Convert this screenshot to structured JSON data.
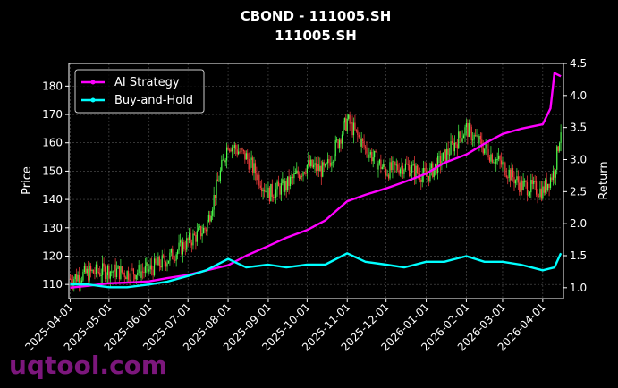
{
  "chart_data": {
    "type": "line",
    "title": "CBOND - 111005.SH",
    "subtitle": "111005.SH",
    "xlabel": "",
    "ylabel_left": "Price",
    "ylabel_right": "Return",
    "x_tick_labels": [
      "2025-04-01",
      "2025-05-01",
      "2025-06-01",
      "2025-07-01",
      "2025-08-01",
      "2025-09-01",
      "2025-10-01",
      "2025-11-01",
      "2025-12-01",
      "2026-01-01",
      "2026-02-01",
      "2026-03-01",
      "2026-04-01"
    ],
    "y_left_ticks": [
      110,
      120,
      130,
      140,
      150,
      160,
      170,
      180
    ],
    "y_right_ticks": [
      "1.0",
      "1.5",
      "2.0",
      "2.5",
      "3.0",
      "3.5",
      "4.0",
      "4.5"
    ],
    "xlim": [
      "2025-03-31",
      "2026-04-17"
    ],
    "ylim_left": [
      105,
      188
    ],
    "ylim_right": [
      0.83,
      4.5
    ],
    "grid": true,
    "legend_position": "top-left",
    "colors": {
      "ai_strategy": "#ff00ff",
      "buy_and_hold": "#00ffff",
      "up_candle": "#4cff4c",
      "down_candle": "#ff4040"
    },
    "series": [
      {
        "name": "AI Strategy",
        "axis": "right",
        "x": [
          "2025-04-01",
          "2025-04-15",
          "2025-05-01",
          "2025-05-15",
          "2025-06-01",
          "2025-06-15",
          "2025-07-01",
          "2025-07-15",
          "2025-08-01",
          "2025-08-15",
          "2025-09-01",
          "2025-09-15",
          "2025-10-01",
          "2025-10-15",
          "2025-11-01",
          "2025-11-15",
          "2025-12-01",
          "2025-12-15",
          "2026-01-01",
          "2026-01-15",
          "2026-02-01",
          "2026-02-15",
          "2026-03-01",
          "2026-03-15",
          "2026-04-01",
          "2026-04-07",
          "2026-04-10",
          "2026-04-15"
        ],
        "values": [
          1.0,
          1.03,
          1.07,
          1.08,
          1.1,
          1.15,
          1.2,
          1.27,
          1.35,
          1.5,
          1.65,
          1.78,
          1.9,
          2.05,
          2.35,
          2.45,
          2.55,
          2.65,
          2.78,
          2.95,
          3.08,
          3.25,
          3.4,
          3.48,
          3.55,
          3.8,
          4.35,
          4.3
        ]
      },
      {
        "name": "Buy-and-Hold",
        "axis": "left",
        "x": [
          "2025-04-01",
          "2025-04-15",
          "2025-05-01",
          "2025-05-15",
          "2025-06-01",
          "2025-06-15",
          "2025-07-01",
          "2025-07-15",
          "2025-08-01",
          "2025-08-15",
          "2025-09-01",
          "2025-09-15",
          "2025-10-01",
          "2025-10-15",
          "2025-11-01",
          "2025-11-15",
          "2025-12-01",
          "2025-12-15",
          "2026-01-01",
          "2026-01-15",
          "2026-02-01",
          "2026-02-15",
          "2026-03-01",
          "2026-03-15",
          "2026-04-01",
          "2026-04-10",
          "2026-04-15"
        ],
        "values": [
          110,
          110,
          109,
          109,
          110,
          111,
          113,
          115,
          119,
          116,
          117,
          116,
          117,
          117,
          121,
          118,
          117,
          116,
          118,
          118,
          120,
          118,
          118,
          117,
          115,
          116,
          121
        ]
      },
      {
        "name": "Price (candles)",
        "axis": "left",
        "x": [
          "2025-04-01",
          "2025-04-15",
          "2025-05-01",
          "2025-05-15",
          "2025-06-01",
          "2025-06-15",
          "2025-07-01",
          "2025-07-15",
          "2025-08-01",
          "2025-08-15",
          "2025-09-01",
          "2025-09-15",
          "2025-10-01",
          "2025-10-15",
          "2025-11-01",
          "2025-11-15",
          "2025-12-01",
          "2025-12-15",
          "2026-01-01",
          "2026-01-15",
          "2026-02-01",
          "2026-02-15",
          "2026-03-01",
          "2026-03-15",
          "2026-04-01",
          "2026-04-10",
          "2026-04-15"
        ],
        "values": [
          112,
          114,
          115,
          114,
          115,
          119,
          125,
          130,
          160,
          155,
          142,
          145,
          152,
          150,
          168,
          158,
          150,
          152,
          148,
          155,
          165,
          158,
          152,
          145,
          143,
          150,
          165
        ]
      }
    ]
  },
  "legend": {
    "ai_label": "AI Strategy",
    "bh_label": "Buy-and-Hold"
  },
  "watermark": "uqtool.com"
}
